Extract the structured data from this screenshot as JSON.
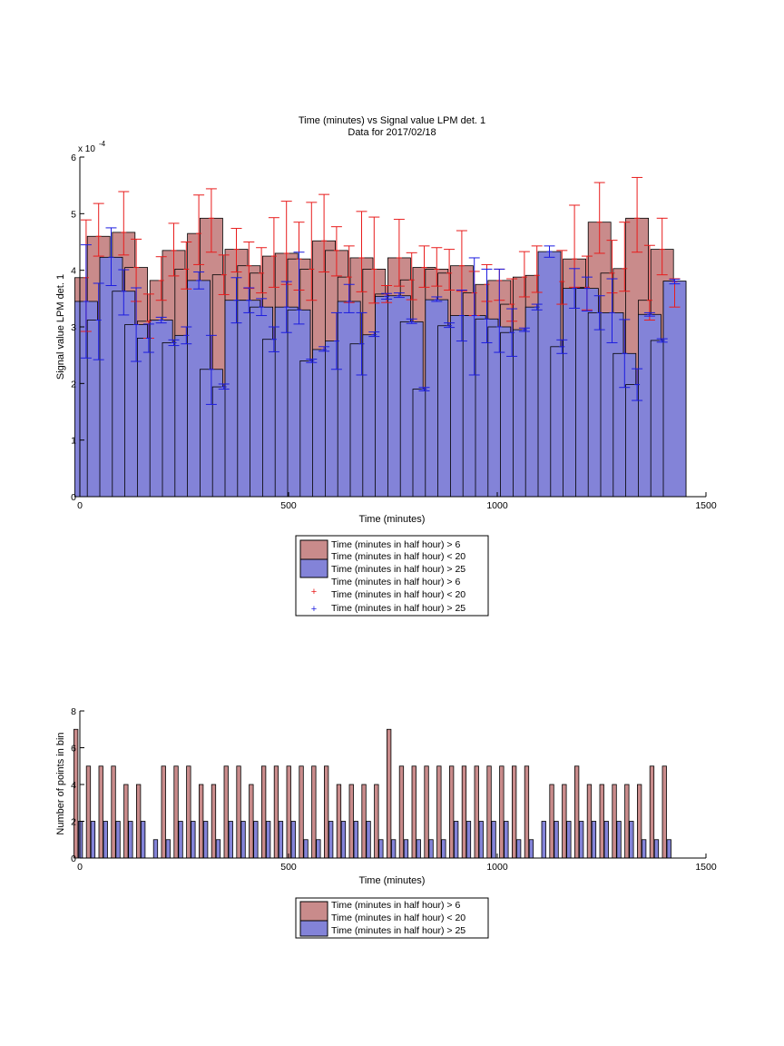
{
  "figure": {
    "title_line1": "Time (minutes) vs Signal value LPM det. 1",
    "title_line2": "Data for 2017/02/18"
  },
  "colors": {
    "red_fill": "#c98b8b",
    "blue_fill": "#8383d8",
    "red_err": "#e81c1c",
    "blue_err": "#1c1ce0",
    "bar_edge": "#000000"
  },
  "chart_data": [
    {
      "type": "bar",
      "title": "Time (minutes) vs Signal value LPM det. 1",
      "subtitle": "Data for 2017/02/18",
      "xlabel": "Time (minutes)",
      "ylabel": "Signal value LPM det. 1",
      "exponent_label": "x 10",
      "exponent_power": "-4",
      "xlim": [
        0,
        1500
      ],
      "ylim": [
        0,
        6
      ],
      "x_ticks": [
        0,
        500,
        1000,
        1500
      ],
      "y_ticks": [
        0,
        1,
        2,
        3,
        4,
        5,
        6
      ],
      "y_scale_note": "values in units of 1e-4",
      "legend_position": "below",
      "legend": [
        "Time (minutes in half hour) > 6",
        "Time (minutes in half hour) < 20",
        "Time (minutes in half hour) > 25",
        "Time (minutes in half hour) > 6",
        "Time (minutes in half hour) < 20",
        "Time (minutes in half hour) > 25"
      ],
      "x": [
        15,
        45,
        75,
        105,
        135,
        165,
        195,
        225,
        255,
        285,
        315,
        345,
        375,
        405,
        435,
        465,
        495,
        525,
        555,
        585,
        615,
        645,
        675,
        705,
        735,
        765,
        795,
        825,
        855,
        885,
        915,
        945,
        975,
        1005,
        1035,
        1065,
        1095,
        1125,
        1155,
        1185,
        1215,
        1245,
        1275,
        1305,
        1335,
        1365,
        1395,
        1425
      ],
      "series": [
        {
          "name": "Time (minutes in half hour) > 6  Time (minutes in half hour) < 20",
          "values": [
            3.87,
            4.6,
            0,
            4.67,
            4.05,
            3.1,
            3.82,
            4.35,
            4.02,
            4.65,
            4.92,
            3.92,
            4.37,
            4.08,
            3.95,
            4.25,
            4.3,
            4.2,
            4.02,
            4.52,
            4.35,
            3.88,
            4.22,
            4.02,
            3.58,
            4.22,
            3.83,
            4.05,
            4.02,
            3.95,
            4.08,
            3.6,
            3.75,
            3.82,
            3.4,
            3.88,
            3.91,
            0,
            3.8,
            4.2,
            3.7,
            4.85,
            3.95,
            4.03,
            4.92,
            3.47,
            4.37,
            3.8
          ],
          "err_low": [
            0.95,
            0.35,
            0,
            0.4,
            0.6,
            0.3,
            0.35,
            0.45,
            0.35,
            0.55,
            0.6,
            0.35,
            0.4,
            0.4,
            0.35,
            0.55,
            0.55,
            0.55,
            0.55,
            0.55,
            0.45,
            0.45,
            0.6,
            0.6,
            0.15,
            0.5,
            0.35,
            0.35,
            0.3,
            0.3,
            0.45,
            0.4,
            0.3,
            0.35,
            0.3,
            0.35,
            0.3,
            0,
            0.4,
            0.5,
            0.4,
            0.55,
            0.35,
            0.4,
            0.6,
            0.35,
            0.45,
            0.45
          ],
          "err_high": [
            1.02,
            0.58,
            0,
            0.72,
            0.5,
            0.48,
            0.42,
            0.48,
            0.48,
            0.68,
            0.52,
            0.35,
            0.37,
            0.42,
            0.45,
            0.68,
            0.92,
            0.65,
            1.18,
            0.82,
            0.42,
            0.55,
            0.82,
            0.92,
            0.15,
            0.68,
            0.48,
            0.38,
            0.38,
            0.42,
            0.62,
            0.38,
            0.35,
            0.2,
            0.45,
            0.45,
            0.52,
            0,
            0.55,
            0.95,
            0.55,
            0.7,
            0.58,
            0.82,
            0.72,
            0.97,
            0.55,
            0.05
          ]
        },
        {
          "name": "Time (minutes in half hour) > 25",
          "values": [
            3.45,
            3.12,
            4.23,
            3.63,
            3.04,
            2.8,
            3.12,
            2.72,
            2.85,
            3.82,
            2.25,
            1.94,
            3.47,
            3.47,
            3.35,
            2.78,
            3.35,
            3.3,
            2.4,
            2.6,
            2.75,
            3.45,
            2.7,
            2.86,
            3.54,
            3.55,
            3.09,
            1.9,
            3.48,
            3.02,
            3.2,
            3.2,
            3.14,
            3.0,
            2.9,
            2.95,
            3.35,
            4.33,
            2.65,
            3.68,
            3.68,
            3.25,
            3.25,
            2.53,
            1.98,
            3.22,
            2.76,
            3.81
          ],
          "err_low": [
            1.0,
            0.7,
            0.5,
            0.42,
            0.65,
            0.25,
            0.05,
            0.05,
            0.15,
            0.15,
            0.62,
            0.04,
            0.4,
            0.22,
            0.15,
            0.22,
            0.45,
            0.25,
            0.03,
            0.03,
            0.5,
            0.2,
            0.55,
            0.03,
            0.05,
            0.03,
            0.03,
            0.03,
            0.03,
            0.03,
            0.45,
            1.05,
            0.42,
            0.45,
            0.42,
            0.03,
            0.05,
            0.1,
            0.12,
            0.35,
            0.4,
            0.3,
            0.53,
            0.6,
            0.28,
            0.03,
            0.03,
            0.05
          ],
          "err_high": [
            1.0,
            0.65,
            0.52,
            0.38,
            0.65,
            0.25,
            0.05,
            0.05,
            0.15,
            0.15,
            0.6,
            0.05,
            0.4,
            0.22,
            0.15,
            0.22,
            0.45,
            1.02,
            0.03,
            0.05,
            0.5,
            0.3,
            0.55,
            0.05,
            0.05,
            0.05,
            0.05,
            0.03,
            0.05,
            0.05,
            0.45,
            1.02,
            0.88,
            1.02,
            0.42,
            0.03,
            0.05,
            0.1,
            0.12,
            0.35,
            0.2,
            0.3,
            0.6,
            0.6,
            0.28,
            0.03,
            0.03,
            0.03
          ]
        }
      ]
    },
    {
      "type": "bar",
      "title": "",
      "xlabel": "Time (minutes)",
      "ylabel": "Number of points in bin",
      "xlim": [
        0,
        1500
      ],
      "ylim": [
        0,
        8
      ],
      "x_ticks": [
        0,
        500,
        1000,
        1500
      ],
      "y_ticks": [
        0,
        2,
        4,
        6,
        8
      ],
      "legend_position": "below",
      "legend": [
        "Time (minutes in half hour) > 6",
        "Time (minutes in half hour) < 20",
        "Time (minutes in half hour) > 25"
      ],
      "x": [
        15,
        45,
        75,
        105,
        135,
        165,
        195,
        225,
        255,
        285,
        315,
        345,
        375,
        405,
        435,
        465,
        495,
        525,
        555,
        585,
        615,
        645,
        675,
        705,
        735,
        765,
        795,
        825,
        855,
        885,
        915,
        945,
        975,
        1005,
        1035,
        1065,
        1095,
        1125,
        1155,
        1185,
        1215,
        1245,
        1275,
        1305,
        1335,
        1365,
        1395,
        1425
      ],
      "series": [
        {
          "name": "Time (minutes in half hour) > 6  Time (minutes in half hour) < 20",
          "values": [
            7,
            5,
            5,
            5,
            4,
            4,
            0,
            5,
            5,
            5,
            4,
            4,
            5,
            5,
            4,
            5,
            5,
            5,
            5,
            5,
            5,
            4,
            4,
            4,
            4,
            7,
            5,
            5,
            5,
            5,
            5,
            5,
            5,
            5,
            5,
            5,
            5,
            0,
            4,
            4,
            5,
            4,
            4,
            4,
            4,
            4,
            5,
            5
          ]
        },
        {
          "name": "Time (minutes in half hour) > 25",
          "values": [
            2,
            2,
            2,
            2,
            2,
            2,
            1,
            1,
            2,
            2,
            2,
            1,
            2,
            2,
            2,
            2,
            2,
            2,
            1,
            1,
            2,
            2,
            2,
            2,
            1,
            1,
            1,
            1,
            1,
            1,
            2,
            2,
            2,
            2,
            2,
            1,
            1,
            2,
            2,
            2,
            2,
            2,
            2,
            2,
            2,
            1,
            1,
            1
          ]
        }
      ]
    }
  ]
}
